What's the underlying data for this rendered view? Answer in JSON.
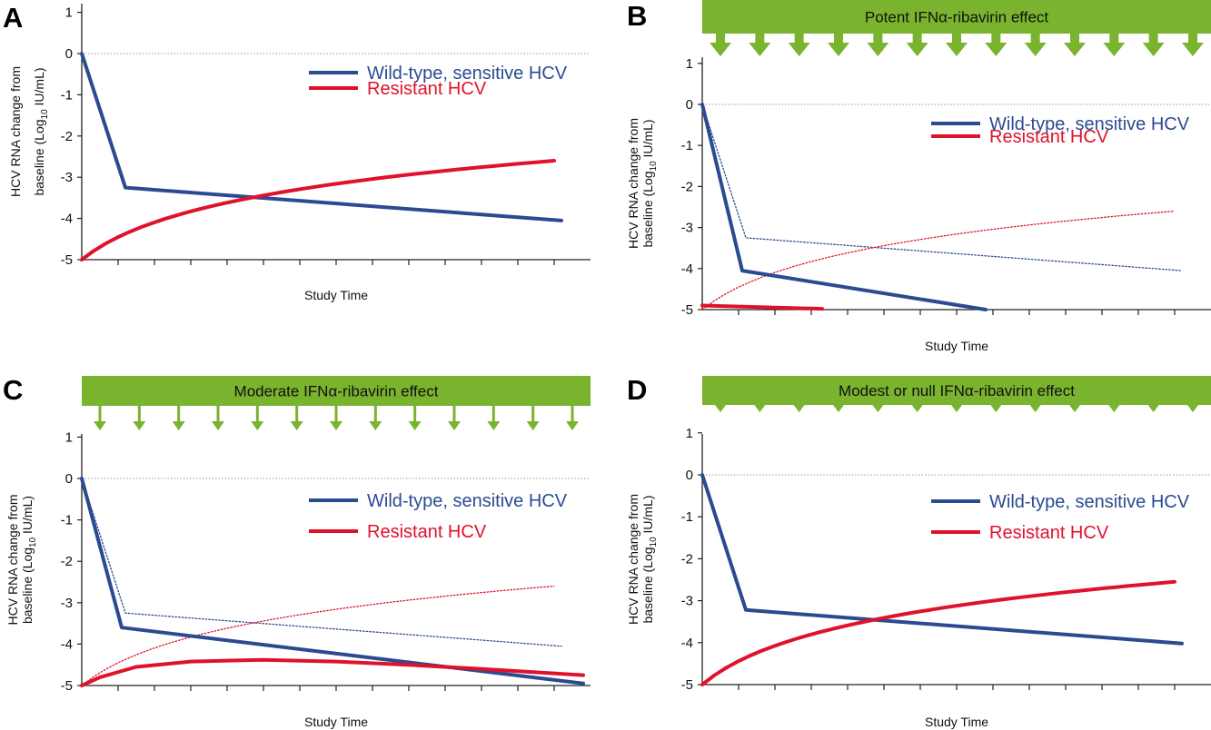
{
  "colors": {
    "wild": "#2b4b91",
    "resistant": "#e0122b",
    "banner": "#7ab32e",
    "zero_line": "#9a9a9a"
  },
  "chart_data": [
    {
      "panel": "A",
      "type": "line",
      "banner": null,
      "xlabel": "Study Time",
      "ylabel_main": "HCV RNA change from",
      "ylabel_sub_pre": "baseline (Log",
      "ylabel_sub_sub": "10",
      "ylabel_sub_post": " IU/mL)",
      "yticks": [
        "1",
        "0",
        "-1",
        "-2",
        "-3",
        "-4",
        "-5"
      ],
      "ylim": [
        -5,
        1
      ],
      "xlim": [
        0,
        13
      ],
      "legend": [
        {
          "name": "Wild-type, sensitive HCV",
          "color": "#2b4b91"
        },
        {
          "name": "Resistant HCV",
          "color": "#e0122b"
        }
      ],
      "series": [
        {
          "name": "Wild-type, sensitive HCV",
          "color": "#2b4b91",
          "style": "solid",
          "points": [
            [
              0,
              0
            ],
            [
              1.2,
              -3.25
            ],
            [
              13.2,
              -4.05
            ]
          ]
        },
        {
          "name": "Resistant HCV",
          "color": "#e0122b",
          "style": "solid",
          "curve": "log",
          "from": [
            0,
            -5
          ],
          "to": [
            13,
            -2.6
          ]
        }
      ]
    },
    {
      "panel": "B",
      "type": "line",
      "banner": "Potent IFNα-ribavirin effect",
      "xlabel": "Study Time",
      "ylabel_main": "HCV RNA change from",
      "ylabel_sub_pre": "baseline (Log",
      "ylabel_sub_sub": "10",
      "ylabel_sub_post": " IU/mL)",
      "yticks": [
        "1",
        "0",
        "-1",
        "-2",
        "-3",
        "-4",
        "-5"
      ],
      "ylim": [
        -5,
        1
      ],
      "xlim": [
        0,
        13
      ],
      "legend": [
        {
          "name": "Wild-type, sensitive HCV",
          "color": "#2b4b91"
        },
        {
          "name": "Resistant HCV",
          "color": "#e0122b"
        }
      ],
      "series": [
        {
          "name": "Wild-type, sensitive HCV",
          "color": "#2b4b91",
          "style": "solid",
          "points": [
            [
              0,
              0
            ],
            [
              1.1,
              -4.05
            ],
            [
              7.8,
              -5.0
            ]
          ]
        },
        {
          "name": "Resistant HCV",
          "color": "#e0122b",
          "style": "solid",
          "points": [
            [
              0,
              -4.9
            ],
            [
              3.3,
              -4.98
            ]
          ]
        },
        {
          "name": "Wild-type, sensitive HCV",
          "color": "#2b4b91",
          "style": "dotted",
          "points": [
            [
              0,
              0
            ],
            [
              1.2,
              -3.25
            ],
            [
              13.2,
              -4.05
            ]
          ]
        },
        {
          "name": "Resistant HCV",
          "color": "#e0122b",
          "style": "dotted",
          "curve": "log",
          "from": [
            0,
            -5
          ],
          "to": [
            13,
            -2.6
          ]
        }
      ]
    },
    {
      "panel": "C",
      "type": "line",
      "banner": "Moderate IFNα-ribavirin effect",
      "xlabel": "Study Time",
      "ylabel_main": "HCV RNA change from",
      "ylabel_sub_pre": "baseline (Log",
      "ylabel_sub_sub": "10",
      "ylabel_sub_post": " IU/mL)",
      "yticks": [
        "1",
        "0",
        "-1",
        "-2",
        "-3",
        "-4",
        "-5"
      ],
      "ylim": [
        -5,
        1
      ],
      "xlim": [
        0,
        13
      ],
      "legend": [
        {
          "name": "Wild-type, sensitive HCV",
          "color": "#2b4b91"
        },
        {
          "name": "Resistant HCV",
          "color": "#e0122b"
        }
      ],
      "series": [
        {
          "name": "Wild-type, sensitive HCV",
          "color": "#2b4b91",
          "style": "solid",
          "points": [
            [
              0,
              0
            ],
            [
              1.1,
              -3.6
            ],
            [
              13.8,
              -4.95
            ]
          ]
        },
        {
          "name": "Resistant HCV",
          "color": "#e0122b",
          "style": "solid",
          "points": [
            [
              0,
              -5.0
            ],
            [
              0.5,
              -4.8
            ],
            [
              1.5,
              -4.55
            ],
            [
              3,
              -4.42
            ],
            [
              5,
              -4.38
            ],
            [
              7,
              -4.42
            ],
            [
              9,
              -4.5
            ],
            [
              11,
              -4.6
            ],
            [
              13.8,
              -4.75
            ]
          ]
        },
        {
          "name": "Wild-type, sensitive HCV",
          "color": "#2b4b91",
          "style": "dotted",
          "points": [
            [
              0,
              0
            ],
            [
              1.2,
              -3.25
            ],
            [
              13.2,
              -4.05
            ]
          ]
        },
        {
          "name": "Resistant HCV",
          "color": "#e0122b",
          "style": "dotted",
          "curve": "log",
          "from": [
            0,
            -5
          ],
          "to": [
            13,
            -2.6
          ]
        }
      ]
    },
    {
      "panel": "D",
      "type": "line",
      "banner": "Modest or null IFNα-ribavirin effect",
      "xlabel": "Study Time",
      "ylabel_main": "HCV RNA change from",
      "ylabel_sub_pre": "baseline (Log",
      "ylabel_sub_sub": "10",
      "ylabel_sub_post": " IU/mL)",
      "yticks": [
        "1",
        "0",
        "-1",
        "-2",
        "-3",
        "-4",
        "-5"
      ],
      "ylim": [
        -5,
        1
      ],
      "xlim": [
        0,
        13
      ],
      "legend": [
        {
          "name": "Wild-type, sensitive HCV",
          "color": "#2b4b91"
        },
        {
          "name": "Resistant HCV",
          "color": "#e0122b"
        }
      ],
      "series": [
        {
          "name": "Wild-type, sensitive HCV",
          "color": "#2b4b91",
          "style": "solid",
          "points": [
            [
              0,
              0
            ],
            [
              1.2,
              -3.22
            ],
            [
              13.2,
              -4.02
            ]
          ]
        },
        {
          "name": "Resistant HCV",
          "color": "#e0122b",
          "style": "solid",
          "curve": "log",
          "from": [
            0,
            -5
          ],
          "to": [
            13,
            -2.55
          ]
        }
      ]
    }
  ]
}
